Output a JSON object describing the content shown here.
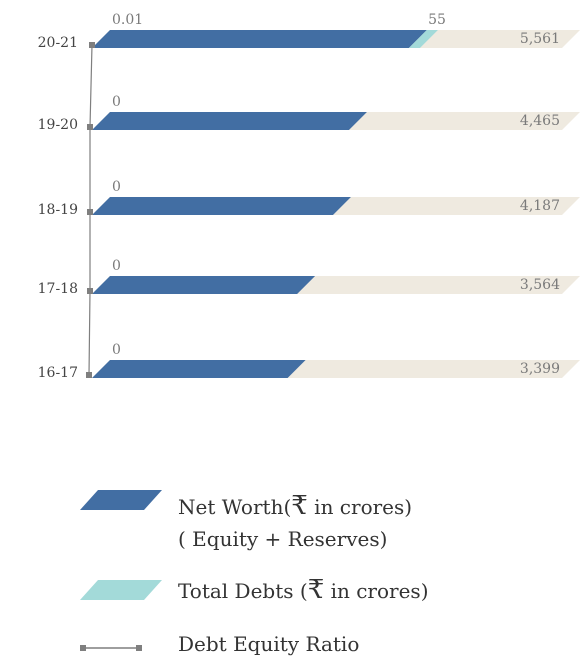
{
  "chart_data": {
    "type": "bar",
    "orientation": "horizontal",
    "categories": [
      "20-21",
      "19-20",
      "18-19",
      "17-18",
      "16-17"
    ],
    "series": [
      {
        "name": "Net Worth(₹ in crores) ( Equity + Reserves)",
        "values": [
          5506,
          4465,
          4187,
          3564,
          3399
        ],
        "color": "#426ea3"
      },
      {
        "name": "Total Debts (₹ in crores)",
        "values": [
          55,
          0,
          0,
          0,
          0
        ],
        "color": "#a3dad9"
      }
    ],
    "totals": [
      "5,561",
      "4,465",
      "4,187",
      "3,564",
      "3,399"
    ],
    "debt_equity_ratio": {
      "name": "Debt Equity Ratio",
      "labels": [
        "0.01",
        "0",
        "0",
        "0",
        "0"
      ],
      "values": [
        0.01,
        0,
        0,
        0,
        0
      ]
    },
    "total_debt_labels": [
      "55",
      "",
      "",
      "",
      ""
    ],
    "track_color": "#efeae0",
    "ratio_line_color": "#7f7f7f"
  },
  "legend": {
    "net_worth_line1": "Net Worth",
    "rupee_symbol": "₹",
    "net_worth_unit": " in crores)",
    "net_worth_line2": "( Equity + Reserves)",
    "total_debts_prefix": "Total Debts (",
    "total_debts_unit": " in crores)",
    "ratio_label": "Debt Equity Ratio"
  }
}
